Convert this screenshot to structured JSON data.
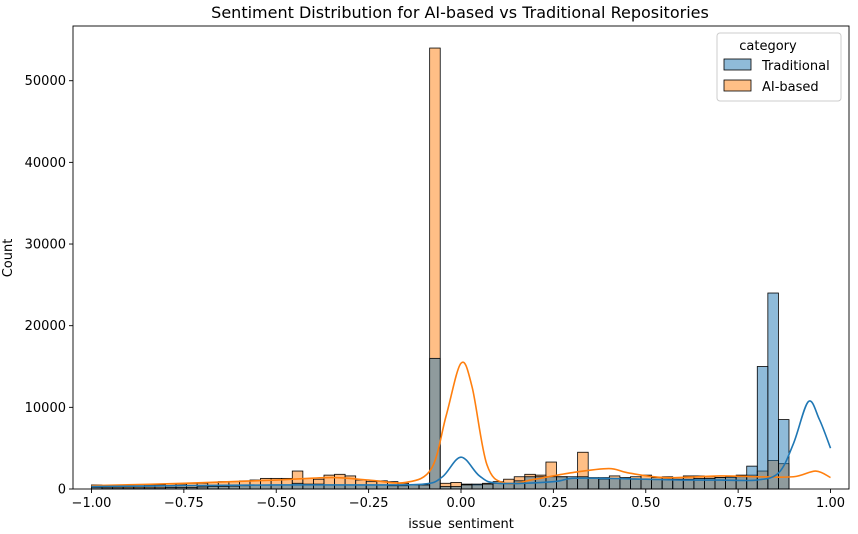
{
  "chart_data": {
    "type": "histogram",
    "title": "Sentiment Distribution for AI-based vs Traditional Repositories",
    "xlabel": "issue_sentiment",
    "ylabel": "Count",
    "xlim": [
      -1.05,
      1.05
    ],
    "ylim": [
      0,
      56700
    ],
    "x_ticks": [
      -1.0,
      -0.75,
      -0.5,
      -0.25,
      0.0,
      0.25,
      0.5,
      0.75,
      1.0
    ],
    "x_tick_labels": [
      "−1.00",
      "−0.75",
      "−0.50",
      "−0.25",
      "0.00",
      "0.25",
      "0.50",
      "0.75",
      "1.00"
    ],
    "y_ticks": [
      0,
      10000,
      20000,
      30000,
      40000,
      50000
    ],
    "y_tick_labels": [
      "0",
      "10000",
      "20000",
      "30000",
      "40000",
      "50000"
    ],
    "grid": false,
    "legend": {
      "title": "category",
      "placement": "top-right"
    },
    "bin_start": -1.0,
    "bin_width": 0.0286,
    "series": [
      {
        "name": "Traditional",
        "color": "#1f77b4",
        "bar_alpha": 0.5,
        "values": [
          200,
          150,
          150,
          150,
          150,
          150,
          150,
          200,
          200,
          200,
          250,
          300,
          300,
          350,
          400,
          500,
          500,
          500,
          500,
          700,
          600,
          600,
          500,
          500,
          500,
          500,
          500,
          500,
          400,
          400,
          500,
          500,
          16000,
          300,
          300,
          500,
          600,
          600,
          700,
          700,
          1000,
          1500,
          1500,
          1500,
          1500,
          1500,
          1500,
          1400,
          1400,
          1300,
          1300,
          1200,
          1200,
          1200,
          1200,
          1200,
          1200,
          1300,
          1300,
          1400,
          1500,
          1700,
          2800,
          15000,
          24000,
          8500
        ],
        "kde": [
          [
            -1.0,
            300
          ],
          [
            -0.75,
            400
          ],
          [
            -0.5,
            500
          ],
          [
            -0.25,
            500
          ],
          [
            -0.1,
            600
          ],
          [
            -0.05,
            1500
          ],
          [
            0.0,
            3900
          ],
          [
            0.05,
            1600
          ],
          [
            0.1,
            700
          ],
          [
            0.25,
            900
          ],
          [
            0.3,
            1300
          ],
          [
            0.4,
            1300
          ],
          [
            0.5,
            1200
          ],
          [
            0.6,
            1100
          ],
          [
            0.7,
            1100
          ],
          [
            0.8,
            1100
          ],
          [
            0.86,
            2000
          ],
          [
            0.9,
            5600
          ],
          [
            0.94,
            10700
          ],
          [
            0.97,
            8500
          ],
          [
            1.0,
            5000
          ]
        ]
      },
      {
        "name": "AI-based",
        "color": "#ff7f0e",
        "bar_alpha": 0.5,
        "values": [
          500,
          300,
          400,
          400,
          400,
          500,
          500,
          600,
          600,
          700,
          700,
          800,
          900,
          900,
          1000,
          1100,
          1300,
          1300,
          1300,
          2200,
          1300,
          1200,
          1700,
          1800,
          1600,
          1100,
          900,
          1000,
          900,
          700,
          500,
          500,
          54000,
          700,
          800,
          600,
          500,
          700,
          900,
          1200,
          1500,
          1800,
          1700,
          3300,
          1500,
          1300,
          4500,
          1300,
          1200,
          1600,
          1400,
          1500,
          1700,
          1400,
          1500,
          1400,
          1600,
          1600,
          1500,
          1400,
          1400,
          1500,
          1700,
          2200,
          3500,
          3100
        ],
        "kde": [
          [
            -1.0,
            400
          ],
          [
            -0.75,
            700
          ],
          [
            -0.5,
            1100
          ],
          [
            -0.35,
            1400
          ],
          [
            -0.25,
            1100
          ],
          [
            -0.15,
            800
          ],
          [
            -0.08,
            2500
          ],
          [
            -0.04,
            9000
          ],
          [
            0.0,
            15400
          ],
          [
            0.03,
            12500
          ],
          [
            0.07,
            3000
          ],
          [
            0.12,
            700
          ],
          [
            0.2,
            1200
          ],
          [
            0.3,
            2000
          ],
          [
            0.4,
            2500
          ],
          [
            0.45,
            2000
          ],
          [
            0.55,
            1400
          ],
          [
            0.7,
            1600
          ],
          [
            0.8,
            1500
          ],
          [
            0.9,
            1500
          ],
          [
            0.96,
            2200
          ],
          [
            1.0,
            1400
          ]
        ]
      }
    ]
  }
}
